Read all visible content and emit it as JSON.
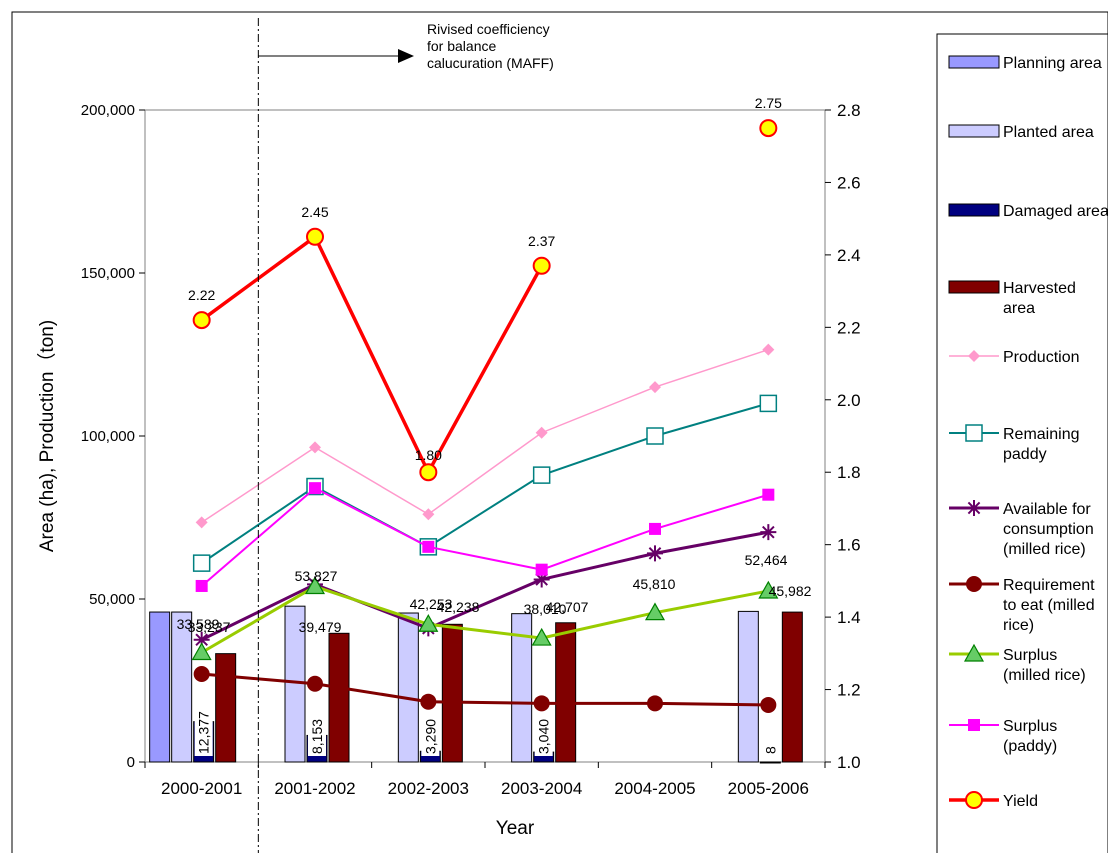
{
  "chart_data": {
    "type": "bar",
    "categories": [
      "2000-2001",
      "2001-2002",
      "2002-2003",
      "2003-2004",
      "2004-2005",
      "2005-2006"
    ],
    "xlabel": "Year",
    "ylabel": "Area (ha), Production（ton)",
    "ylim": [
      0,
      200000
    ],
    "y2lim": [
      1.0,
      2.8
    ],
    "y_ticks": [
      "0",
      "50,000",
      "100,000",
      "150,000",
      "200,000"
    ],
    "y2_ticks": [
      "1.0",
      "1.2",
      "1.4",
      "1.6",
      "1.8",
      "2.0",
      "2.2",
      "2.4",
      "2.6",
      "2.8"
    ],
    "legend_position": "right",
    "annotation": {
      "text_lines": [
        "Rivised coefficiency",
        "for balance",
        "calucuration (MAFF)"
      ],
      "category_boundary": "2001-2002"
    },
    "series": [
      {
        "name": "Planning area",
        "kind": "bar",
        "color": "#9999ff",
        "values": [
          46000,
          null,
          null,
          null,
          null,
          null
        ]
      },
      {
        "name": "Planted area",
        "kind": "bar",
        "color": "#ccccff",
        "values": [
          46000,
          47800,
          45700,
          45500,
          null,
          46200
        ]
      },
      {
        "name": "Damaged area",
        "kind": "bar",
        "color": "#000080",
        "values": [
          12377,
          8153,
          3290,
          3040,
          null,
          8
        ]
      },
      {
        "name": "Harvested area",
        "kind": "bar",
        "color": "#800000",
        "values": [
          33237,
          39479,
          42238,
          42707,
          null,
          45982
        ]
      },
      {
        "name": "Production",
        "kind": "line",
        "color": "#ff99cc",
        "marker": "diamond",
        "values": [
          73500,
          96500,
          76000,
          101000,
          115000,
          126500
        ]
      },
      {
        "name": "Remaining paddy",
        "kind": "line",
        "color": "#008080",
        "marker": "square-open",
        "values": [
          61000,
          84500,
          66000,
          88000,
          100000,
          110000
        ]
      },
      {
        "name": "Available for consumption (milled rice)",
        "kind": "line",
        "color": "#660066",
        "marker": "star",
        "values": [
          37500,
          54500,
          41000,
          56000,
          64000,
          70500
        ]
      },
      {
        "name": "Requirement to eat (milled rice)",
        "kind": "line",
        "color": "#800000",
        "marker": "circle",
        "values": [
          27000,
          24000,
          18500,
          18000,
          18000,
          17500
        ]
      },
      {
        "name": "Surplus (milled rice)",
        "kind": "line",
        "color": "#99cc00",
        "marker": "triangle",
        "values": [
          33589,
          53827,
          42253,
          38010,
          45810,
          52464
        ]
      },
      {
        "name": "Surplus (paddy)",
        "kind": "line",
        "color": "#ff00ff",
        "marker": "square",
        "values": [
          54000,
          84000,
          66000,
          59000,
          71500,
          82000
        ]
      },
      {
        "name": "Yield",
        "kind": "line",
        "axis": "right",
        "color": "#ff0000",
        "marker": "circle-yellow",
        "values": [
          2.22,
          2.45,
          1.8,
          2.37,
          null,
          2.75
        ]
      }
    ],
    "data_labels": [
      {
        "series": "Damaged area",
        "texts": [
          "12,377",
          "8,153",
          "3,290",
          "3,040",
          null,
          "8"
        ]
      },
      {
        "series": "Harvested area",
        "texts": [
          "33,237",
          "39,479",
          "42,238",
          "42,707",
          null,
          "45,982"
        ]
      },
      {
        "series": "Surplus (milled rice)",
        "texts": [
          "33,589",
          "53,827",
          "42,253",
          "38,010",
          "45,810",
          "52,464"
        ]
      },
      {
        "series": "Yield",
        "texts": [
          "2.22",
          "2.45",
          "1.80",
          "2.37",
          null,
          "2.75"
        ]
      }
    ]
  },
  "legend_labels": [
    [
      "Planning area"
    ],
    [
      "Planted area"
    ],
    [
      "Damaged area"
    ],
    [
      "Harvested",
      "area"
    ],
    [
      "Production"
    ],
    [
      "Remaining",
      "paddy"
    ],
    [
      "Available for",
      "consumption",
      "(milled rice)"
    ],
    [
      "Requirement",
      "to eat (milled",
      "rice)"
    ],
    [
      "Surplus",
      "(milled rice)"
    ],
    [
      "Surplus",
      "(paddy)"
    ],
    [
      "Yield"
    ]
  ]
}
